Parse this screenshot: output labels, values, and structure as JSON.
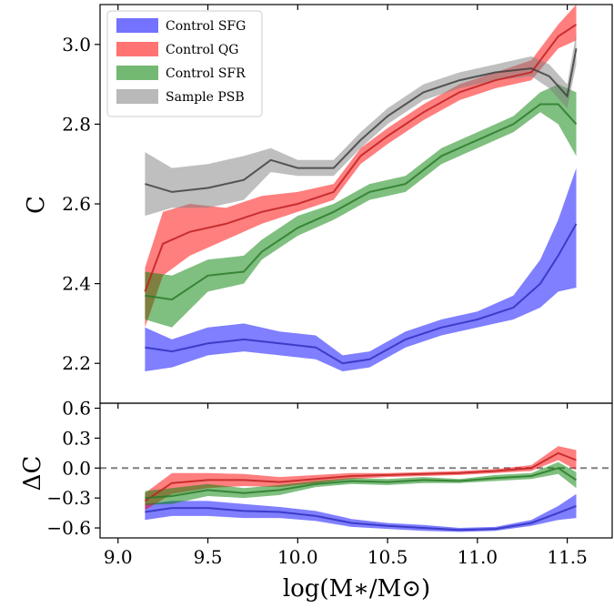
{
  "chart_data": [
    {
      "type": "area",
      "panel": "top",
      "ylabel": "C",
      "xlim": [
        8.9,
        11.75
      ],
      "ylim": [
        2.1,
        3.1
      ],
      "xticks": [
        9.0,
        9.5,
        10.0,
        10.5,
        11.0,
        11.5
      ],
      "yticks": [
        2.2,
        2.4,
        2.6,
        2.8,
        3.0
      ],
      "ytick_labels": [
        "2.2",
        "2.4",
        "2.6",
        "2.8",
        "3.0"
      ],
      "legend_position": "upper-left",
      "series": [
        {
          "name": "Control SFG",
          "color": "#0000ff",
          "x": [
            9.15,
            9.3,
            9.5,
            9.7,
            9.9,
            10.1,
            10.25,
            10.4,
            10.6,
            10.8,
            11.0,
            11.2,
            11.35,
            11.45,
            11.55
          ],
          "y": [
            2.24,
            2.23,
            2.25,
            2.26,
            2.25,
            2.24,
            2.2,
            2.21,
            2.26,
            2.29,
            2.31,
            2.34,
            2.4,
            2.47,
            2.55
          ],
          "lower": [
            2.18,
            2.19,
            2.22,
            2.23,
            2.22,
            2.21,
            2.18,
            2.19,
            2.24,
            2.27,
            2.29,
            2.31,
            2.34,
            2.38,
            2.39
          ],
          "upper": [
            2.29,
            2.26,
            2.29,
            2.3,
            2.28,
            2.27,
            2.22,
            2.23,
            2.28,
            2.31,
            2.33,
            2.37,
            2.46,
            2.56,
            2.69
          ]
        },
        {
          "name": "Control QG",
          "color": "#ff0000",
          "x": [
            9.15,
            9.25,
            9.4,
            9.6,
            9.8,
            10.0,
            10.2,
            10.35,
            10.5,
            10.7,
            10.9,
            11.1,
            11.3,
            11.45,
            11.55
          ],
          "y": [
            2.38,
            2.5,
            2.53,
            2.55,
            2.58,
            2.6,
            2.63,
            2.72,
            2.77,
            2.83,
            2.88,
            2.91,
            2.93,
            3.02,
            3.05
          ],
          "lower": [
            2.29,
            2.42,
            2.47,
            2.51,
            2.55,
            2.58,
            2.61,
            2.7,
            2.75,
            2.81,
            2.86,
            2.89,
            2.91,
            2.99,
            3.01
          ],
          "upper": [
            2.44,
            2.58,
            2.6,
            2.59,
            2.62,
            2.63,
            2.65,
            2.74,
            2.79,
            2.85,
            2.9,
            2.93,
            2.96,
            3.05,
            3.1
          ]
        },
        {
          "name": "Control SFR",
          "color": "#008000",
          "x": [
            9.15,
            9.3,
            9.5,
            9.7,
            9.8,
            10.0,
            10.2,
            10.4,
            10.6,
            10.8,
            11.0,
            11.2,
            11.35,
            11.45,
            11.55
          ],
          "y": [
            2.37,
            2.36,
            2.42,
            2.43,
            2.48,
            2.54,
            2.58,
            2.63,
            2.65,
            2.72,
            2.76,
            2.8,
            2.85,
            2.85,
            2.8
          ],
          "lower": [
            2.31,
            2.29,
            2.38,
            2.4,
            2.46,
            2.52,
            2.56,
            2.61,
            2.63,
            2.7,
            2.74,
            2.78,
            2.83,
            2.8,
            2.72
          ],
          "upper": [
            2.43,
            2.42,
            2.46,
            2.47,
            2.51,
            2.57,
            2.6,
            2.65,
            2.67,
            2.74,
            2.78,
            2.82,
            2.88,
            2.9,
            2.88
          ]
        },
        {
          "name": "Sample PSB",
          "color": "#808080",
          "x": [
            9.15,
            9.3,
            9.5,
            9.7,
            9.85,
            10.0,
            10.2,
            10.35,
            10.5,
            10.7,
            10.9,
            11.1,
            11.3,
            11.4,
            11.5,
            11.55
          ],
          "y": [
            2.65,
            2.63,
            2.64,
            2.66,
            2.71,
            2.69,
            2.69,
            2.76,
            2.82,
            2.88,
            2.91,
            2.93,
            2.94,
            2.92,
            2.87,
            2.99
          ],
          "lower": [
            2.57,
            2.59,
            2.59,
            2.61,
            2.68,
            2.67,
            2.67,
            2.74,
            2.8,
            2.86,
            2.89,
            2.91,
            2.92,
            2.89,
            2.84,
            2.95
          ],
          "upper": [
            2.73,
            2.69,
            2.7,
            2.72,
            2.74,
            2.71,
            2.71,
            2.78,
            2.84,
            2.9,
            2.93,
            2.95,
            2.97,
            2.95,
            2.9,
            3.03
          ]
        }
      ]
    },
    {
      "type": "area",
      "panel": "bottom",
      "xlabel": "log(M∗/M⊙)",
      "ylabel": "ΔC",
      "xlim": [
        8.9,
        11.75
      ],
      "ylim": [
        -0.7,
        0.65
      ],
      "xticks": [
        9.0,
        9.5,
        10.0,
        10.5,
        11.0,
        11.5
      ],
      "xtick_labels": [
        "9.0",
        "9.5",
        "10.0",
        "10.5",
        "11.0",
        "11.5"
      ],
      "yticks": [
        -0.6,
        -0.3,
        0.0,
        0.3,
        0.6
      ],
      "ytick_labels": [
        "−0.6",
        "−0.3",
        "0.0",
        "0.3",
        "0.6"
      ],
      "reference_line": 0.0,
      "series": [
        {
          "name": "Control SFG",
          "color": "#0000ff",
          "x": [
            9.15,
            9.3,
            9.5,
            9.7,
            9.9,
            10.1,
            10.3,
            10.5,
            10.7,
            10.9,
            11.1,
            11.3,
            11.45,
            11.55
          ],
          "y": [
            -0.44,
            -0.4,
            -0.4,
            -0.43,
            -0.44,
            -0.48,
            -0.55,
            -0.58,
            -0.6,
            -0.62,
            -0.61,
            -0.55,
            -0.45,
            -0.38
          ],
          "lower": [
            -0.52,
            -0.48,
            -0.48,
            -0.5,
            -0.5,
            -0.53,
            -0.59,
            -0.61,
            -0.63,
            -0.64,
            -0.63,
            -0.58,
            -0.52,
            -0.5
          ],
          "upper": [
            -0.36,
            -0.33,
            -0.33,
            -0.36,
            -0.39,
            -0.43,
            -0.51,
            -0.55,
            -0.57,
            -0.6,
            -0.59,
            -0.52,
            -0.38,
            -0.26
          ]
        },
        {
          "name": "Control QG",
          "color": "#ff0000",
          "x": [
            9.15,
            9.3,
            9.5,
            9.7,
            9.9,
            10.1,
            10.3,
            10.5,
            10.7,
            10.9,
            11.1,
            11.3,
            11.45,
            11.55
          ],
          "y": [
            -0.33,
            -0.15,
            -0.12,
            -0.12,
            -0.14,
            -0.11,
            -0.08,
            -0.07,
            -0.06,
            -0.05,
            -0.03,
            0.0,
            0.15,
            0.08
          ],
          "lower": [
            -0.42,
            -0.26,
            -0.2,
            -0.18,
            -0.19,
            -0.15,
            -0.11,
            -0.09,
            -0.08,
            -0.07,
            -0.05,
            -0.03,
            0.08,
            -0.02
          ],
          "upper": [
            -0.25,
            -0.05,
            -0.05,
            -0.06,
            -0.09,
            -0.07,
            -0.05,
            -0.05,
            -0.04,
            -0.03,
            -0.01,
            0.03,
            0.22,
            0.18
          ]
        },
        {
          "name": "Control SFR",
          "color": "#008000",
          "x": [
            9.15,
            9.3,
            9.5,
            9.7,
            9.9,
            10.1,
            10.3,
            10.5,
            10.7,
            10.9,
            11.1,
            11.3,
            11.45,
            11.55
          ],
          "y": [
            -0.3,
            -0.28,
            -0.22,
            -0.25,
            -0.22,
            -0.16,
            -0.13,
            -0.14,
            -0.12,
            -0.13,
            -0.1,
            -0.08,
            0.0,
            -0.12
          ],
          "lower": [
            -0.37,
            -0.36,
            -0.28,
            -0.3,
            -0.27,
            -0.19,
            -0.16,
            -0.17,
            -0.15,
            -0.15,
            -0.13,
            -0.11,
            -0.06,
            -0.2
          ],
          "upper": [
            -0.23,
            -0.2,
            -0.16,
            -0.2,
            -0.17,
            -0.13,
            -0.1,
            -0.11,
            -0.09,
            -0.11,
            -0.07,
            -0.05,
            0.06,
            -0.04
          ]
        }
      ]
    }
  ]
}
